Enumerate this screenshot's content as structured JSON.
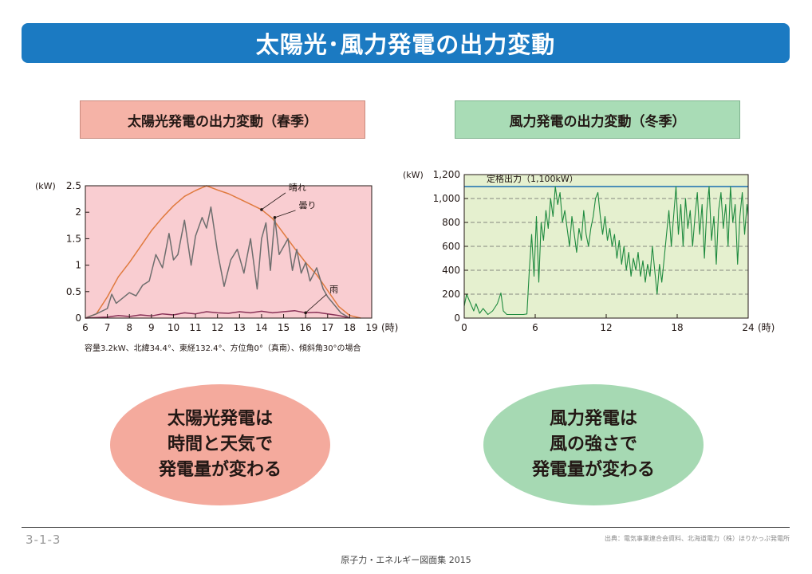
{
  "header": {
    "title": "太陽光･風力発電の出力変動"
  },
  "solar": {
    "label": "太陽光発電の出力変動（春季）",
    "caption": "容量3.2kW、北緯34.4°、東経132.4°、方位角0°（真南）、傾斜角30°の場合",
    "summary": [
      "太陽光発電は",
      "時間と天気で",
      "発電量が変わる"
    ]
  },
  "wind": {
    "label": "風力発電の出力変動（冬季）",
    "summary": [
      "風力発電は",
      "風の強さで",
      "発電量が変わる"
    ]
  },
  "footer": {
    "page": "3-1-3",
    "source": "出典：電気事業連合会資料、北海道電力（株）ほりかっぷ発電所",
    "book": "原子力・エネルギー図面集 2015"
  },
  "colors": {
    "title_bar": "#1b7ac2",
    "solar_panel": "#f5b3a7",
    "wind_panel": "#a9dcb6",
    "solar_plot_bg": "#f9cdd1",
    "wind_plot_bg": "#e5f0cf",
    "clear_line": "#e07a3e",
    "cloudy_line": "#6e6e6e",
    "rain_line": "#8a3358",
    "wind_line": "#1e8a3e",
    "rated_line": "#1a6fb0"
  },
  "chart_data": [
    {
      "type": "line",
      "unit_label": "(kW)",
      "x_unit": "(時)",
      "xlim": [
        6,
        19
      ],
      "ylim": [
        0,
        2.5
      ],
      "x_ticks": [
        "6",
        "7",
        "8",
        "9",
        "10",
        "11",
        "12",
        "13",
        "14",
        "15",
        "16",
        "17",
        "18",
        "19"
      ],
      "y_ticks": [
        "0",
        "0.5",
        "1",
        "1.5",
        "2",
        "2.5"
      ],
      "grid": false,
      "series": [
        {
          "name": "晴れ",
          "color": "#e07a3e",
          "points": [
            [
              6,
              0
            ],
            [
              6.5,
              0.08
            ],
            [
              7,
              0.4
            ],
            [
              7.5,
              0.78
            ],
            [
              8,
              1.05
            ],
            [
              8.5,
              1.35
            ],
            [
              9,
              1.65
            ],
            [
              9.5,
              1.9
            ],
            [
              10,
              2.12
            ],
            [
              10.5,
              2.3
            ],
            [
              11,
              2.41
            ],
            [
              11.5,
              2.5
            ],
            [
              12,
              2.42
            ],
            [
              12.5,
              2.35
            ],
            [
              13,
              2.25
            ],
            [
              13.5,
              2.15
            ],
            [
              14,
              2.05
            ],
            [
              14.5,
              1.88
            ],
            [
              15,
              1.6
            ],
            [
              15.5,
              1.32
            ],
            [
              16,
              1.05
            ],
            [
              16.5,
              0.82
            ],
            [
              17,
              0.52
            ],
            [
              17.5,
              0.22
            ],
            [
              18,
              0.05
            ],
            [
              18.5,
              0
            ]
          ]
        },
        {
          "name": "曇り",
          "color": "#6e6e6e",
          "points": [
            [
              6,
              0
            ],
            [
              6.5,
              0.08
            ],
            [
              7,
              0.18
            ],
            [
              7.2,
              0.45
            ],
            [
              7.4,
              0.28
            ],
            [
              7.7,
              0.38
            ],
            [
              8,
              0.48
            ],
            [
              8.3,
              0.42
            ],
            [
              8.6,
              0.62
            ],
            [
              8.9,
              0.7
            ],
            [
              9.2,
              1.2
            ],
            [
              9.5,
              0.95
            ],
            [
              9.8,
              1.6
            ],
            [
              10,
              1.1
            ],
            [
              10.2,
              1.2
            ],
            [
              10.5,
              1.85
            ],
            [
              10.8,
              1.0
            ],
            [
              11,
              1.55
            ],
            [
              11.3,
              1.9
            ],
            [
              11.5,
              1.7
            ],
            [
              11.7,
              2.1
            ],
            [
              12,
              1.25
            ],
            [
              12.3,
              0.6
            ],
            [
              12.6,
              1.1
            ],
            [
              12.9,
              1.3
            ],
            [
              13.2,
              0.85
            ],
            [
              13.5,
              1.5
            ],
            [
              13.8,
              0.55
            ],
            [
              14,
              1.5
            ],
            [
              14.2,
              1.8
            ],
            [
              14.4,
              0.9
            ],
            [
              14.6,
              1.9
            ],
            [
              14.8,
              1.2
            ],
            [
              15,
              1.35
            ],
            [
              15.2,
              1.5
            ],
            [
              15.4,
              0.9
            ],
            [
              15.6,
              1.3
            ],
            [
              15.8,
              0.85
            ],
            [
              16,
              1.05
            ],
            [
              16.2,
              0.7
            ],
            [
              16.5,
              0.95
            ],
            [
              16.8,
              0.55
            ],
            [
              17,
              0.4
            ],
            [
              17.3,
              0.25
            ],
            [
              17.6,
              0.1
            ],
            [
              18,
              0
            ]
          ]
        },
        {
          "name": "雨",
          "color": "#8a3358",
          "points": [
            [
              6,
              0
            ],
            [
              7,
              0.02
            ],
            [
              7.5,
              0.05
            ],
            [
              8,
              0.03
            ],
            [
              8.5,
              0.06
            ],
            [
              9,
              0.04
            ],
            [
              9.5,
              0.08
            ],
            [
              10,
              0.06
            ],
            [
              10.5,
              0.1
            ],
            [
              11,
              0.08
            ],
            [
              11.5,
              0.12
            ],
            [
              12,
              0.1
            ],
            [
              12.5,
              0.09
            ],
            [
              13,
              0.12
            ],
            [
              13.5,
              0.1
            ],
            [
              14,
              0.13
            ],
            [
              14.5,
              0.1
            ],
            [
              15,
              0.12
            ],
            [
              15.5,
              0.14
            ],
            [
              16,
              0.1
            ],
            [
              16.5,
              0.11
            ],
            [
              17,
              0.08
            ],
            [
              17.5,
              0.05
            ],
            [
              18,
              0
            ]
          ]
        }
      ]
    },
    {
      "type": "line",
      "unit_label": "(kW)",
      "x_unit": "(時)",
      "xlim": [
        0,
        24
      ],
      "ylim": [
        0,
        1200
      ],
      "x_ticks": [
        "0",
        "6",
        "12",
        "18",
        "24"
      ],
      "y_ticks": [
        "0",
        "200",
        "400",
        "600",
        "800",
        "1,000",
        "1,200"
      ],
      "grid": true,
      "rated": {
        "label": "定格出力（1,100kW）",
        "value": 1100
      },
      "series": [
        {
          "name": "",
          "color": "#1e8a3e",
          "points": [
            [
              0,
              100
            ],
            [
              0.2,
              200
            ],
            [
              0.5,
              130
            ],
            [
              0.8,
              60
            ],
            [
              1.0,
              120
            ],
            [
              1.3,
              40
            ],
            [
              1.6,
              80
            ],
            [
              2.0,
              30
            ],
            [
              2.4,
              60
            ],
            [
              2.8,
              120
            ],
            [
              3.1,
              210
            ],
            [
              3.3,
              60
            ],
            [
              3.6,
              30
            ],
            [
              4.2,
              30
            ],
            [
              5.0,
              30
            ],
            [
              5.3,
              35
            ],
            [
              5.5,
              400
            ],
            [
              5.7,
              700
            ],
            [
              5.9,
              350
            ],
            [
              6.1,
              850
            ],
            [
              6.3,
              300
            ],
            [
              6.5,
              800
            ],
            [
              6.7,
              650
            ],
            [
              6.9,
              900
            ],
            [
              7.1,
              750
            ],
            [
              7.3,
              1000
            ],
            [
              7.5,
              850
            ],
            [
              7.7,
              1100
            ],
            [
              7.9,
              950
            ],
            [
              8.1,
              1050
            ],
            [
              8.3,
              800
            ],
            [
              8.5,
              900
            ],
            [
              8.7,
              750
            ],
            [
              8.9,
              600
            ],
            [
              9.1,
              850
            ],
            [
              9.3,
              700
            ],
            [
              9.5,
              550
            ],
            [
              9.7,
              750
            ],
            [
              9.9,
              650
            ],
            [
              10.1,
              900
            ],
            [
              10.3,
              700
            ],
            [
              10.5,
              600
            ],
            [
              10.7,
              750
            ],
            [
              10.9,
              850
            ],
            [
              11.1,
              1000
            ],
            [
              11.3,
              1050
            ],
            [
              11.5,
              850
            ],
            [
              11.7,
              700
            ],
            [
              11.9,
              850
            ],
            [
              12.1,
              650
            ],
            [
              12.3,
              750
            ],
            [
              12.5,
              600
            ],
            [
              12.7,
              700
            ],
            [
              12.9,
              500
            ],
            [
              13.1,
              650
            ],
            [
              13.3,
              450
            ],
            [
              13.5,
              600
            ],
            [
              13.7,
              400
            ],
            [
              13.9,
              550
            ],
            [
              14.1,
              350
            ],
            [
              14.3,
              500
            ],
            [
              14.5,
              400
            ],
            [
              14.7,
              550
            ],
            [
              14.9,
              350
            ],
            [
              15.1,
              480
            ],
            [
              15.3,
              300
            ],
            [
              15.5,
              450
            ],
            [
              15.7,
              350
            ],
            [
              15.9,
              600
            ],
            [
              16.1,
              400
            ],
            [
              16.3,
              200
            ],
            [
              16.5,
              450
            ],
            [
              16.7,
              300
            ],
            [
              16.9,
              500
            ],
            [
              17.1,
              700
            ],
            [
              17.3,
              900
            ],
            [
              17.5,
              600
            ],
            [
              17.7,
              850
            ],
            [
              17.9,
              1100
            ],
            [
              18.1,
              700
            ],
            [
              18.3,
              950
            ],
            [
              18.5,
              600
            ],
            [
              18.7,
              1000
            ],
            [
              18.9,
              750
            ],
            [
              19.1,
              900
            ],
            [
              19.3,
              600
            ],
            [
              19.5,
              850
            ],
            [
              19.7,
              1050
            ],
            [
              19.9,
              700
            ],
            [
              20.1,
              950
            ],
            [
              20.3,
              500
            ],
            [
              20.5,
              900
            ],
            [
              20.7,
              1100
            ],
            [
              20.9,
              650
            ],
            [
              21.1,
              850
            ],
            [
              21.3,
              450
            ],
            [
              21.5,
              900
            ],
            [
              21.7,
              1050
            ],
            [
              21.9,
              750
            ],
            [
              22.1,
              950
            ],
            [
              22.3,
              600
            ],
            [
              22.5,
              1100
            ],
            [
              22.7,
              800
            ],
            [
              22.9,
              950
            ],
            [
              23.1,
              450
            ],
            [
              23.3,
              850
            ],
            [
              23.5,
              1050
            ],
            [
              23.7,
              700
            ],
            [
              23.9,
              950
            ],
            [
              24,
              850
            ]
          ]
        }
      ]
    }
  ]
}
